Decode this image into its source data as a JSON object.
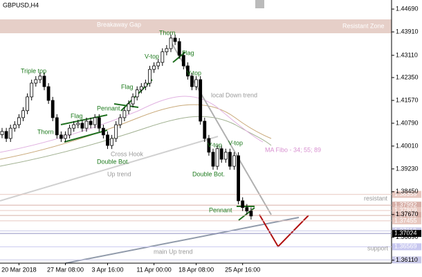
{
  "chart_data": {
    "type": "candlestick",
    "title": "GBPUSD,H4",
    "categories": [
      null,
      null,
      null,
      null,
      "20 Mar 2018",
      null,
      null,
      null,
      null,
      null,
      null,
      null,
      null,
      null,
      null,
      "27 Mar 08:00",
      null,
      null,
      null,
      null,
      null,
      null,
      null,
      null,
      null,
      "3 Apr 16:00",
      null,
      null,
      null,
      null,
      null,
      null,
      null,
      null,
      null,
      null,
      "11 Apr 00:00",
      null,
      null,
      null,
      null,
      null,
      null,
      null,
      null,
      null,
      "18 Apr 08:00",
      null,
      null,
      null,
      null,
      null,
      null,
      null,
      null,
      null,
      null,
      "25 Apr 16:00",
      null,
      null
    ],
    "open": [
      1.404,
      1.4051,
      1.4027,
      1.4062,
      1.4074,
      1.4098,
      1.4122,
      1.4169,
      1.4216,
      1.4228,
      1.424,
      1.4204,
      1.4157,
      1.4098,
      1.4039,
      1.4027,
      1.4039,
      1.4062,
      1.4074,
      1.4079,
      1.4062,
      1.4086,
      1.4074,
      1.4098,
      1.4062,
      1.4039,
      1.4003,
      1.4027,
      1.4074,
      1.4098,
      1.4122,
      1.4145,
      1.4169,
      1.4193,
      1.4204,
      1.4216,
      1.4263,
      1.4275,
      1.4287,
      1.4323,
      1.4334,
      1.437,
      1.4358,
      1.4311,
      1.4275,
      1.424,
      1.4204,
      1.4228,
      1.4086,
      1.4027,
      1.398,
      1.3932,
      1.3992,
      1.3956,
      1.398,
      1.3932,
      1.3968,
      1.3814,
      1.3791,
      1.3779
    ],
    "high": [
      1.4063,
      1.4063,
      1.4074,
      1.4086,
      1.411,
      1.4134,
      1.4181,
      1.4228,
      1.424,
      1.4252,
      1.4252,
      1.4216,
      1.4169,
      1.411,
      1.4051,
      1.4051,
      1.4074,
      1.4086,
      1.4091,
      1.4091,
      1.4098,
      1.4098,
      1.411,
      1.411,
      1.4074,
      1.4051,
      1.4039,
      1.4086,
      1.411,
      1.4134,
      1.4157,
      1.4181,
      1.4205,
      1.4216,
      1.4228,
      1.4275,
      1.4287,
      1.4299,
      1.4335,
      1.4346,
      1.4382,
      1.4382,
      1.437,
      1.4323,
      1.4287,
      1.4252,
      1.424,
      1.424,
      1.4098,
      1.4039,
      1.3992,
      1.4004,
      1.4004,
      1.3992,
      1.3992,
      1.398,
      1.398,
      1.3826,
      1.3803,
      1.3791
    ],
    "low": [
      1.4028,
      1.4015,
      1.4015,
      1.405,
      1.4062,
      1.4086,
      1.411,
      1.4157,
      1.4204,
      1.4216,
      1.4192,
      1.4145,
      1.4086,
      1.4027,
      1.4015,
      1.4015,
      1.4027,
      1.405,
      1.4062,
      1.405,
      1.405,
      1.4062,
      1.4062,
      1.405,
      1.4027,
      1.3991,
      1.3991,
      1.4015,
      1.4062,
      1.4086,
      1.411,
      1.4133,
      1.4157,
      1.4181,
      1.4192,
      1.4204,
      1.4251,
      1.4263,
      1.4275,
      1.4311,
      1.4322,
      1.4346,
      1.4299,
      1.4263,
      1.4228,
      1.4192,
      1.4192,
      1.4074,
      1.4015,
      1.3968,
      1.392,
      1.392,
      1.3944,
      1.3944,
      1.392,
      1.392,
      1.3802,
      1.3779,
      1.3767,
      1.375
    ],
    "close": [
      1.4051,
      1.4027,
      1.4062,
      1.4074,
      1.4098,
      1.4122,
      1.4169,
      1.4216,
      1.4228,
      1.424,
      1.4204,
      1.4157,
      1.4098,
      1.4039,
      1.4027,
      1.4039,
      1.4062,
      1.4074,
      1.4079,
      1.4062,
      1.4086,
      1.4074,
      1.4098,
      1.4062,
      1.4039,
      1.4003,
      1.4027,
      1.4074,
      1.4098,
      1.4122,
      1.4145,
      1.4169,
      1.4193,
      1.4204,
      1.4216,
      1.4263,
      1.4275,
      1.4287,
      1.4323,
      1.4334,
      1.437,
      1.4358,
      1.4311,
      1.4275,
      1.424,
      1.4204,
      1.4228,
      1.4086,
      1.4027,
      1.398,
      1.3932,
      1.3992,
      1.3956,
      1.398,
      1.3932,
      1.3968,
      1.3814,
      1.3791,
      1.3779,
      1.3762
    ],
    "up_color": "#ffffff",
    "down_color": "#000000",
    "ylim": [
      1.3601,
      1.45
    ],
    "yticks": [
      {
        "value": 1.4469,
        "label": "1.44690"
      },
      {
        "value": 1.4391,
        "label": "1.43910"
      },
      {
        "value": 1.4311,
        "label": "1.43110"
      },
      {
        "value": 1.4235,
        "label": "1.42350"
      },
      {
        "value": 1.4157,
        "label": "1.41570"
      },
      {
        "value": 1.4079,
        "label": "1.40790"
      },
      {
        "value": 1.4001,
        "label": "1.40010"
      },
      {
        "value": 1.3923,
        "label": "1.39230"
      },
      {
        "value": 1.3845,
        "label": "1.38450"
      },
      {
        "value": 1.3767,
        "label": "1.37670"
      },
      {
        "value": 1.3689,
        "label": "1.36890"
      },
      {
        "value": 1.3611,
        "label": "1.36110"
      }
    ],
    "levels": [
      {
        "value": 1.38359,
        "label": "1.38359",
        "color": "#e8c8c0"
      },
      {
        "value": 1.37992,
        "label": "1.37992",
        "color": "#d8b0a8"
      },
      {
        "value": 1.37809,
        "label": "1.37809",
        "color": "#e8c8c0"
      },
      {
        "value": 1.37639,
        "label": "1.37639",
        "color": "#d8b0a8"
      },
      {
        "value": 1.37455,
        "label": "1.37455",
        "color": "#e8c8c0"
      },
      {
        "value": 1.37113,
        "label": "1.37113",
        "color": "#c8c8e8"
      },
      {
        "value": 1.37024,
        "label": "1.37024",
        "color": "#000000"
      },
      {
        "value": 1.36569,
        "label": "1.36569",
        "color": "#c8c8f0"
      },
      {
        "value": 1.36121,
        "label": "1.36121",
        "color": "#c8c8e8"
      }
    ],
    "annotations": [
      "Triple top",
      "Thorn",
      "Flag",
      "Pennant",
      "Flag",
      "V-top",
      "Flag",
      "Thorn",
      "V-top",
      "local Down trend",
      "Double Bot.",
      "Cross Hook",
      "Up trend",
      "V-top",
      "V-top",
      "Double Bot.",
      "MA Fibo - 34; 55; 89",
      "Pennant",
      "main Up trend",
      "Breakaway Gap",
      "Resistant Zone",
      "resistant",
      "support"
    ]
  }
}
